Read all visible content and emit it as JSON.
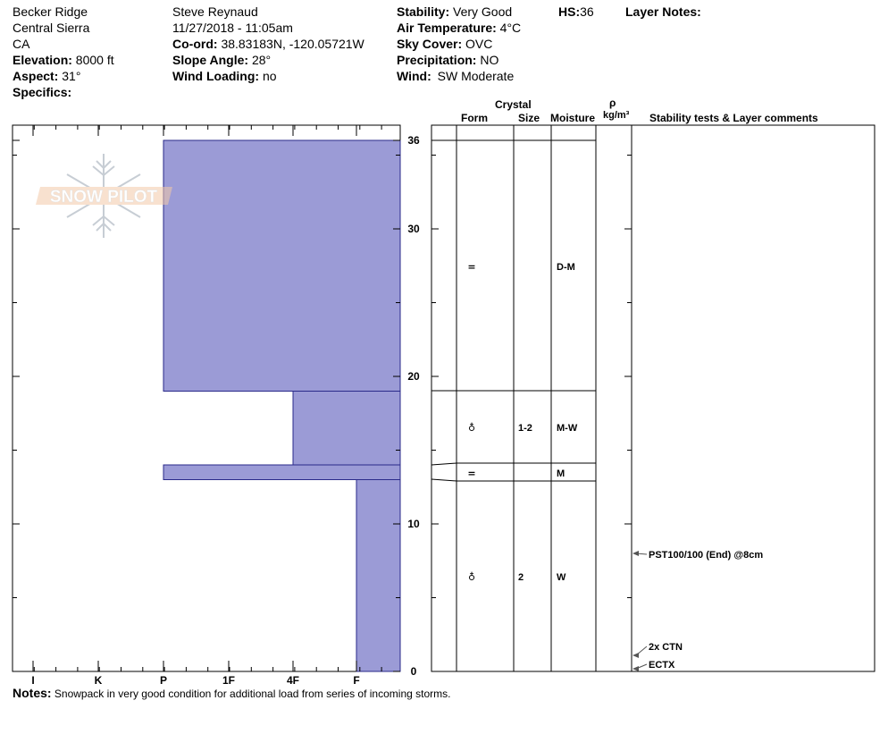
{
  "header": {
    "col1": {
      "location": "Becker Ridge",
      "range": "Central Sierra",
      "state": "CA",
      "elevation_label": "Elevation:",
      "elevation_value": "8000 ft",
      "aspect_label": "Aspect:",
      "aspect_value": "31°",
      "specifics_label": "Specifics:"
    },
    "col2": {
      "observer": "Steve Reynaud",
      "datetime": "11/27/2018 - 11:05am",
      "coord_label": "Co-ord:",
      "coord_value": "38.83183N, -120.05721W",
      "slope_label": "Slope Angle:",
      "slope_value": "28°",
      "wind_loading_label": "Wind Loading:",
      "wind_loading_value": "no"
    },
    "col3": {
      "stability_label": "Stability:",
      "stability_value": "Very Good",
      "air_temp_label": "Air Temperature:",
      "air_temp_value": "4°C",
      "sky_label": "Sky Cover:",
      "sky_value": "OVC",
      "precip_label": "Precipitation:",
      "precip_value": "NO",
      "wind_label": "Wind:",
      "wind_value": "SW Moderate"
    },
    "hs_label": "HS:",
    "hs_value": "36",
    "layer_notes_label": "Layer Notes:"
  },
  "logo_text": "SNOW PILOT",
  "columns": {
    "crystal": "Crystal",
    "form": "Form",
    "size": "Size",
    "moisture": "Moisture",
    "rho": "ρ",
    "density_unit": "kg/m³",
    "comments": "Stability tests & Layer comments"
  },
  "hardness_ticks": [
    "I",
    "K",
    "P",
    "1F",
    "4F",
    "F"
  ],
  "depth_ticks": [
    "36",
    "30",
    "20",
    "10",
    "0"
  ],
  "chart_data": {
    "type": "bar",
    "title": "",
    "xlabel": "",
    "ylabel": "",
    "y_unit": "cm",
    "ylim": [
      0,
      36
    ],
    "x_categories": [
      "I",
      "K",
      "P",
      "1F",
      "4F",
      "F"
    ],
    "layers": [
      {
        "top": 36,
        "bottom": 19,
        "hardness": "P",
        "form": "=",
        "size": "",
        "moisture": "D-M"
      },
      {
        "top": 19,
        "bottom": 14,
        "hardness": "4F",
        "form": "♁",
        "size": "1-2",
        "moisture": "M-W"
      },
      {
        "top": 14,
        "bottom": 13,
        "hardness": "P",
        "form": "=",
        "size": "",
        "moisture": "M"
      },
      {
        "top": 13,
        "bottom": 0,
        "hardness": "F",
        "form": "♁",
        "size": "2",
        "moisture": "W"
      }
    ],
    "tests": [
      {
        "depth": 8,
        "text": "PST100/100 (End) @8cm"
      },
      {
        "depth": 1.7,
        "text": "2x CTN"
      },
      {
        "depth": 0.5,
        "text": "ECTX"
      }
    ]
  },
  "notes_label": "Notes:",
  "notes_text": "Snowpack in very good condition for additional load from series of incoming storms."
}
